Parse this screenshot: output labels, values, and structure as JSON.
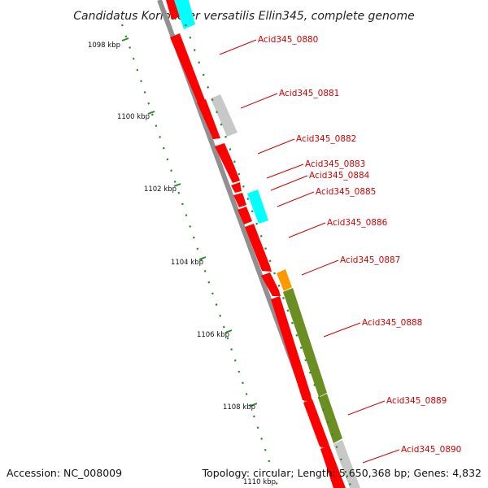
{
  "title": "Candidatus Koribacter versatilis Ellin345, complete genome",
  "footer": {
    "accession": "Accession: NC_008009",
    "stats": "Topology: circular; Length: 5,650,368 bp; Genes: 4,832"
  },
  "scale_labels": [
    "1098 kbp",
    "1100 kbp",
    "1102 kbp",
    "1104 kbp",
    "1106 kbp",
    "1108 kbp",
    "1110 kbp"
  ],
  "genes": [
    "Acid345_0880",
    "Acid345_0881",
    "Acid345_0882",
    "Acid345_0883",
    "Acid345_0884",
    "Acid345_0885",
    "Acid345_0886",
    "Acid345_0887",
    "Acid345_0888",
    "Acid345_0889",
    "Acid345_0890"
  ],
  "colors": {
    "cds": "#ff0000",
    "cds_dark": "#c00000",
    "backbone": "#909090",
    "other": "#c8c8c8",
    "highlight_cyan": "#00ffff",
    "highlight_orange": "#ff9900",
    "highlight_green": "#6b8e23",
    "tick": "#2a8a2a",
    "label": "#d40000"
  }
}
